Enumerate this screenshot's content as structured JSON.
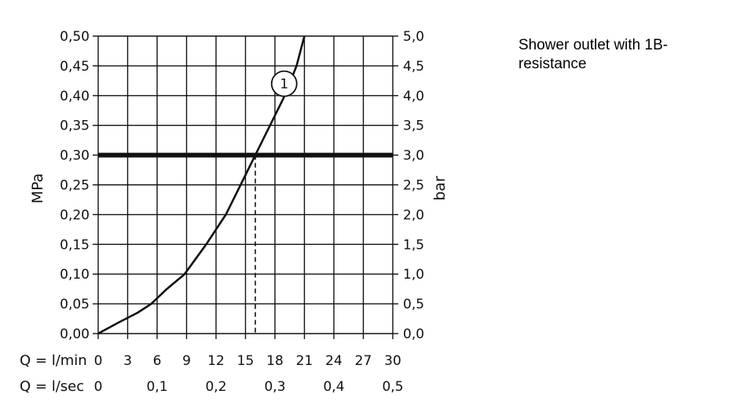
{
  "chart_data": {
    "type": "line",
    "title": "Shower outlet with 1B-resistance",
    "y_left": {
      "label": "MPa",
      "ylim": [
        0,
        0.5
      ],
      "ticks": [
        "0,00",
        "0,05",
        "0,10",
        "0,15",
        "0,20",
        "0,25",
        "0,30",
        "0,35",
        "0,40",
        "0,45",
        "0,50"
      ]
    },
    "y_right": {
      "label": "bar",
      "ticks": [
        "0,0",
        "0,5",
        "1,0",
        "1,5",
        "2,0",
        "2,5",
        "3,0",
        "3,5",
        "4,0",
        "4,5",
        "5,0"
      ]
    },
    "x_primary": {
      "label": "Q = l/min",
      "xlim": [
        0,
        30
      ],
      "ticks": [
        "0",
        "3",
        "6",
        "9",
        "12",
        "15",
        "18",
        "21",
        "24",
        "27",
        "30"
      ]
    },
    "x_secondary": {
      "label": "Q = l/sec",
      "ticks": [
        "0",
        "0,1",
        "0,2",
        "0,3",
        "0,4",
        "0,5"
      ]
    },
    "grid": true,
    "series": [
      {
        "name": "1",
        "x": [
          0,
          2,
          4,
          5.4,
          7,
          8.8,
          11,
          13,
          14.5,
          16,
          17.5,
          19,
          20.2,
          21
        ],
        "y": [
          0,
          0.018,
          0.035,
          0.05,
          0.075,
          0.1,
          0.15,
          0.2,
          0.25,
          0.3,
          0.35,
          0.4,
          0.45,
          0.5
        ]
      }
    ],
    "reference_line": {
      "y": 0.3
    },
    "dashed_drop": {
      "x": 16,
      "y": 0.3
    }
  }
}
